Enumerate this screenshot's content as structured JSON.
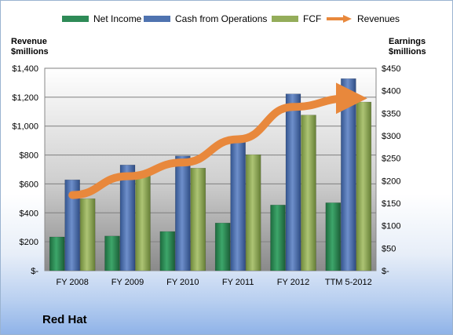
{
  "chart_data": {
    "type": "bar",
    "title": "Red Hat",
    "categories": [
      "FY 2008",
      "FY 2009",
      "FY 2010",
      "FY 2011",
      "FY 2012",
      "TTM 5-2012"
    ],
    "left_axis": {
      "label_line1": "Revenue",
      "label_line2": "$millions",
      "ylim": [
        0,
        1400
      ],
      "ticks": [
        0,
        200,
        400,
        600,
        800,
        1000,
        1200,
        1400
      ],
      "tick_labels": [
        "$-",
        "$200",
        "$400",
        "$600",
        "$800",
        "$1,000",
        "$1,200",
        "$1,400"
      ]
    },
    "right_axis": {
      "label_line1": "Earnings",
      "label_line2": "$millions",
      "ylim": [
        0,
        450
      ],
      "ticks": [
        0,
        50,
        100,
        150,
        200,
        250,
        300,
        350,
        400,
        450
      ],
      "tick_labels": [
        "$-",
        "$50",
        "$100",
        "$150",
        "$200",
        "$250",
        "$300",
        "$350",
        "$400",
        "$450"
      ]
    },
    "series": [
      {
        "name": "Net Income",
        "type": "bar",
        "axis": "right",
        "color": "#2e8b57",
        "values": [
          75,
          77,
          87,
          106,
          146,
          151
        ]
      },
      {
        "name": "Cash from Operations",
        "type": "bar",
        "axis": "right",
        "color": "#4f73b0",
        "values": [
          202,
          235,
          255,
          294,
          393,
          427
        ]
      },
      {
        "name": "FCF",
        "type": "bar",
        "axis": "right",
        "color": "#94ad5a",
        "values": [
          160,
          213,
          228,
          258,
          346,
          375
        ]
      },
      {
        "name": "Revenues",
        "type": "line",
        "axis": "left",
        "color": "#e8883c",
        "values": [
          523,
          653,
          748,
          909,
          1133,
          1192
        ]
      }
    ],
    "grid": true,
    "legend_position": "top"
  }
}
